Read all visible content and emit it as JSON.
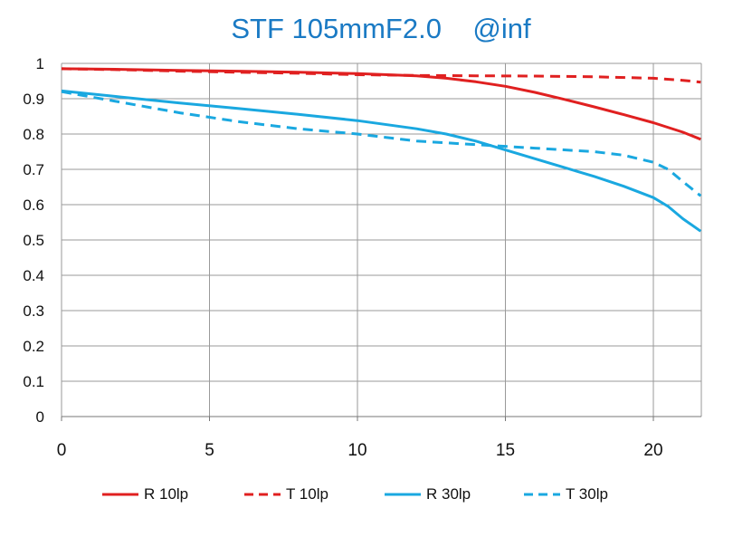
{
  "chart_data": {
    "type": "line",
    "title": "STF 105mmF2.0    @inf",
    "xlim": [
      0,
      21.6
    ],
    "ylim": [
      0,
      1
    ],
    "x_ticks": [
      0,
      5,
      10,
      15,
      20
    ],
    "y_ticks": [
      0,
      0.1,
      0.2,
      0.3,
      0.4,
      0.5,
      0.6,
      0.7,
      0.8,
      0.9,
      1
    ],
    "x_tick_labels": [
      "0",
      "5",
      "10",
      "15",
      "20"
    ],
    "y_tick_labels": [
      "0",
      "0.1",
      "0.2",
      "0.3",
      "0.4",
      "0.5",
      "0.6",
      "0.7",
      "0.8",
      "0.9",
      "1"
    ],
    "grid": true,
    "legend_position": "bottom",
    "series": [
      {
        "name": "R 10lp",
        "color": "#e02020",
        "dash": "solid",
        "x": [
          0,
          2,
          4,
          6,
          8,
          10,
          12,
          13,
          14,
          15,
          16,
          17,
          18,
          19,
          20,
          21,
          21.6
        ],
        "y": [
          0.985,
          0.983,
          0.98,
          0.978,
          0.975,
          0.971,
          0.965,
          0.958,
          0.948,
          0.935,
          0.918,
          0.898,
          0.877,
          0.855,
          0.832,
          0.805,
          0.785
        ]
      },
      {
        "name": "T 10lp",
        "color": "#e02020",
        "dash": "dashed",
        "x": [
          0,
          2,
          4,
          6,
          8,
          10,
          12,
          14,
          16,
          18,
          20,
          21,
          21.6
        ],
        "y": [
          0.985,
          0.982,
          0.978,
          0.975,
          0.972,
          0.968,
          0.966,
          0.965,
          0.964,
          0.962,
          0.958,
          0.952,
          0.947
        ]
      },
      {
        "name": "R 30lp",
        "color": "#1aa8e0",
        "dash": "solid",
        "x": [
          0,
          2,
          4,
          6,
          8,
          10,
          12,
          13,
          14,
          15,
          16,
          17,
          18,
          19,
          20,
          20.5,
          21,
          21.6
        ],
        "y": [
          0.922,
          0.905,
          0.888,
          0.872,
          0.856,
          0.838,
          0.815,
          0.8,
          0.78,
          0.755,
          0.73,
          0.705,
          0.68,
          0.652,
          0.62,
          0.595,
          0.56,
          0.525
        ]
      },
      {
        "name": "T 30lp",
        "color": "#1aa8e0",
        "dash": "dashed",
        "x": [
          0,
          2,
          4,
          6,
          8,
          10,
          12,
          14,
          16,
          18,
          19,
          20,
          20.5,
          21,
          21.6
        ],
        "y": [
          0.92,
          0.89,
          0.86,
          0.835,
          0.815,
          0.8,
          0.78,
          0.77,
          0.76,
          0.75,
          0.74,
          0.72,
          0.7,
          0.665,
          0.625
        ]
      }
    ]
  }
}
